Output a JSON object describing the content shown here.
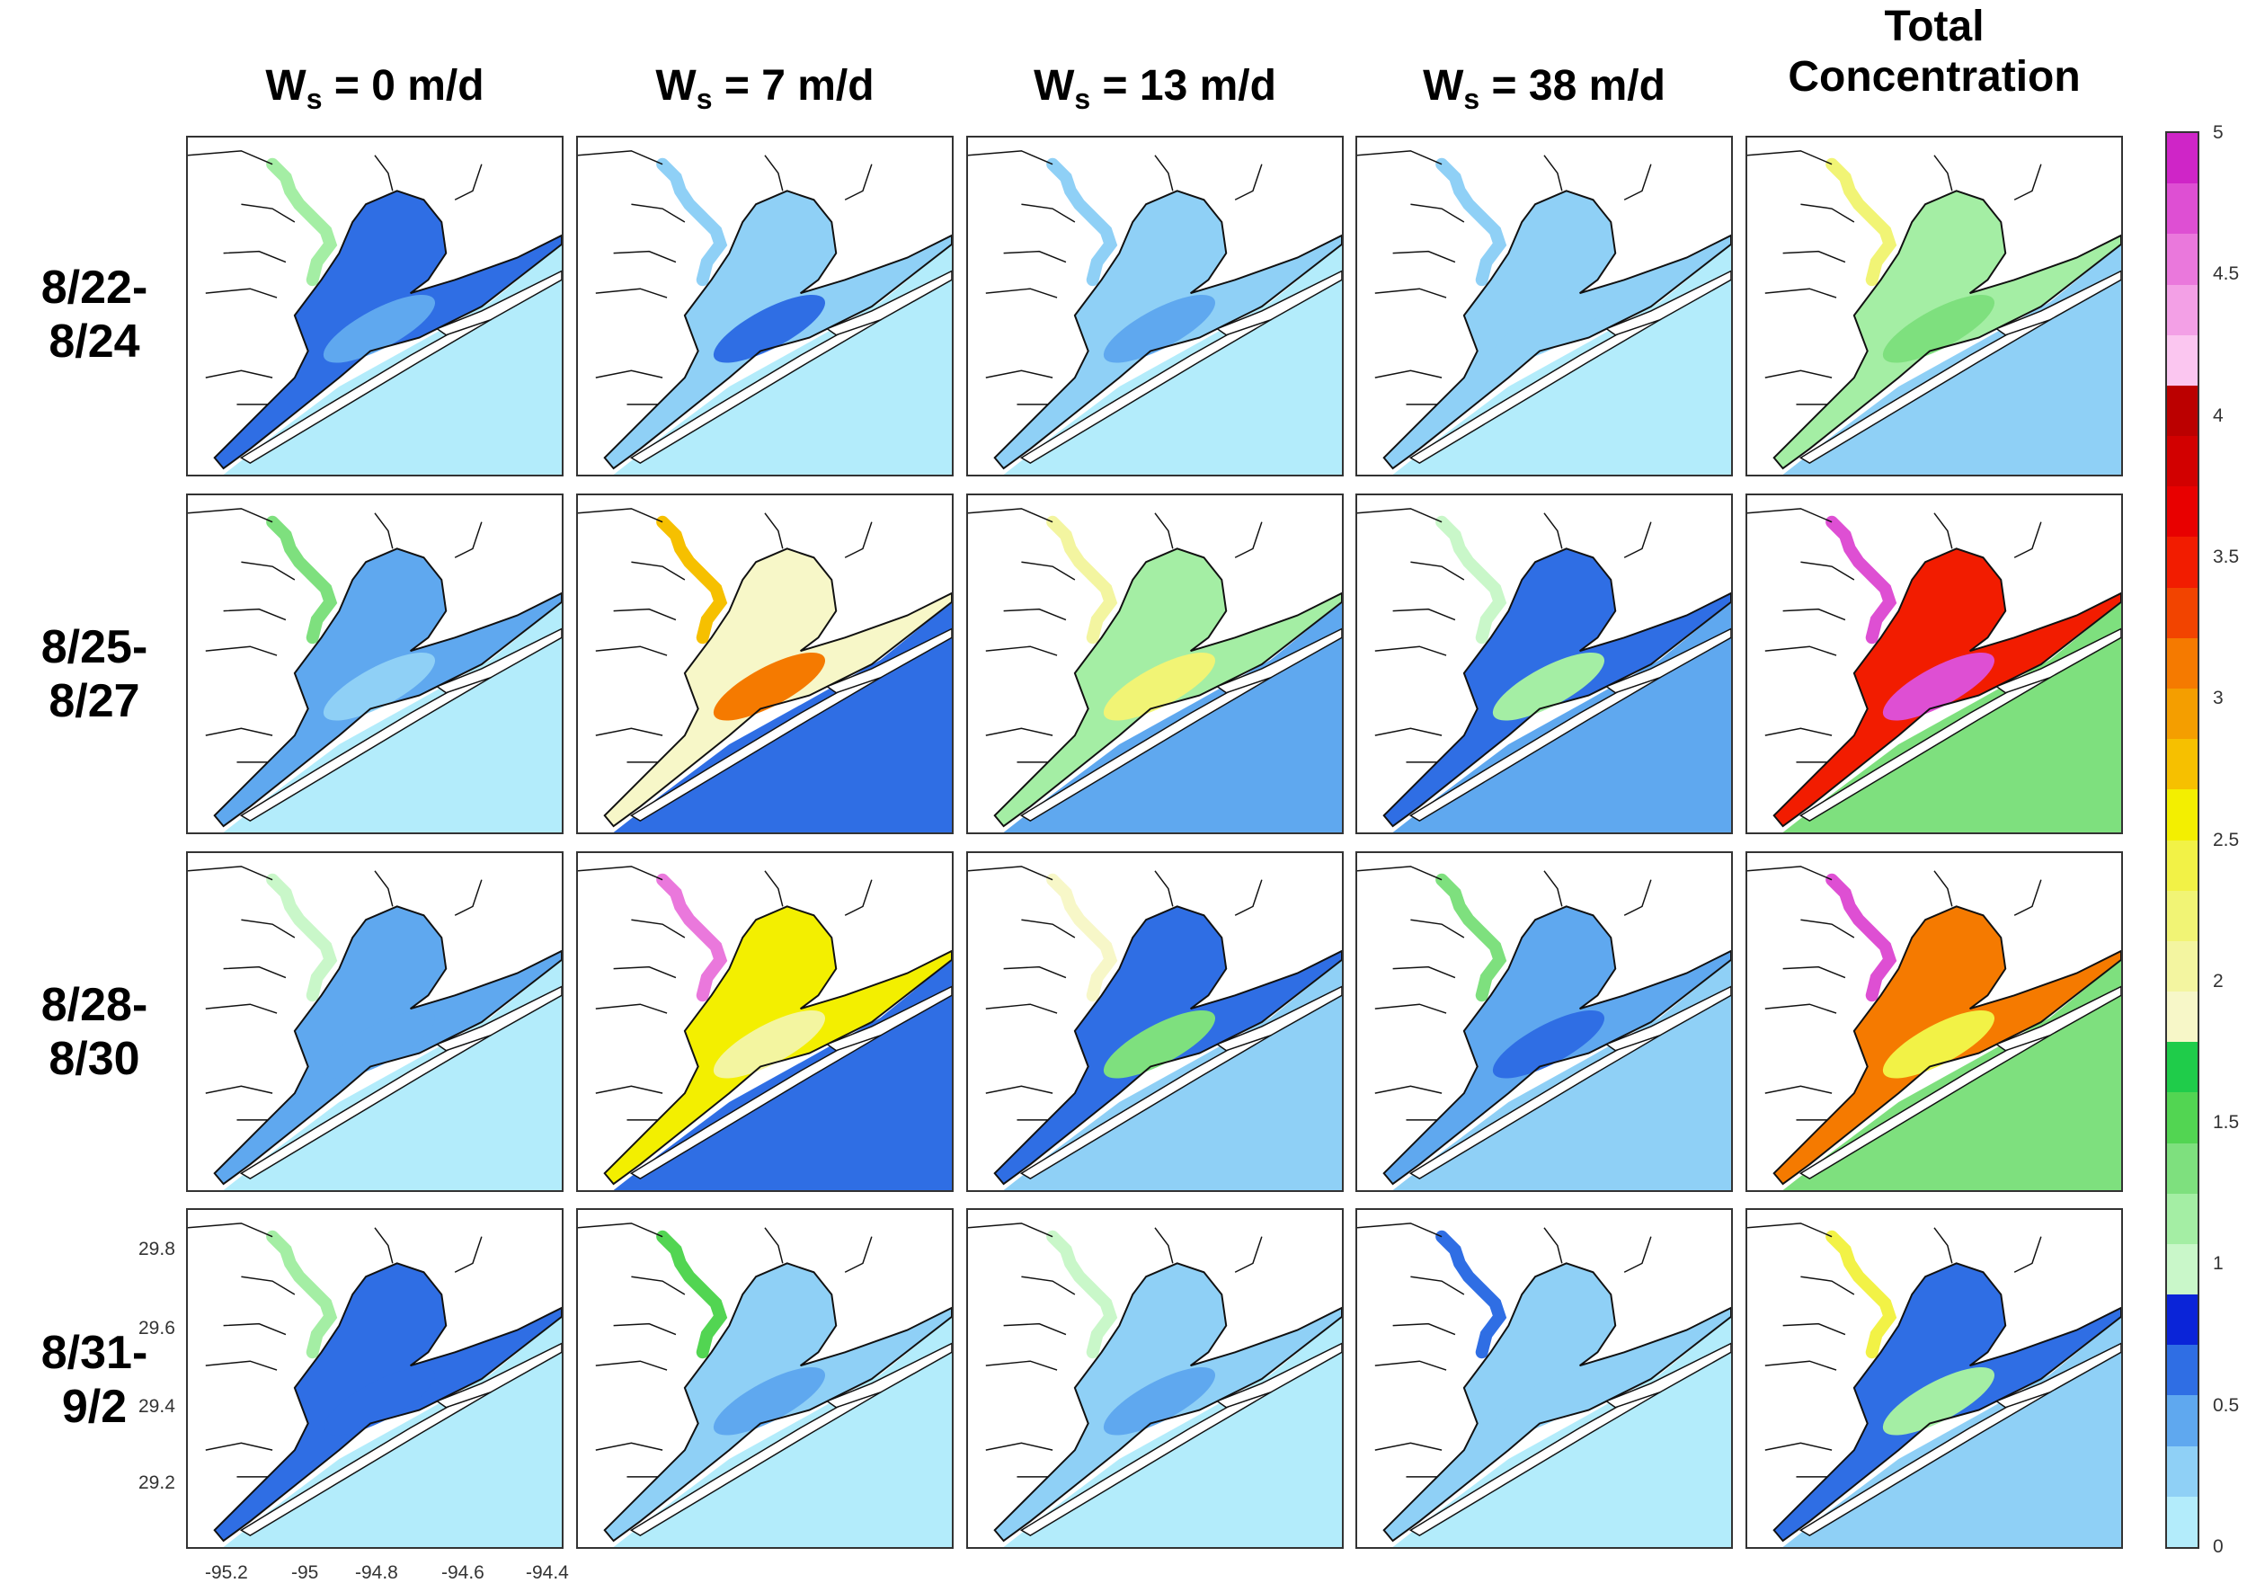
{
  "chart_data": {
    "type": "heatmap",
    "columns": [
      {
        "prefix": "W",
        "sub": "s",
        "rest": " = 0 m/d"
      },
      {
        "prefix": "W",
        "sub": "s",
        "rest": " = 7 m/d"
      },
      {
        "prefix": "W",
        "sub": "s",
        "rest": " = 13 m/d"
      },
      {
        "prefix": "W",
        "sub": "s",
        "rest": " = 38 m/d"
      },
      {
        "line1": "Total",
        "line2": "Concentration"
      }
    ],
    "rows": [
      {
        "line1": "8/22-",
        "line2": "8/24"
      },
      {
        "line1": "8/25-",
        "line2": "8/27"
      },
      {
        "line1": "8/28-",
        "line2": "8/30"
      },
      {
        "line1": "8/31-",
        "line2": "9/2"
      }
    ],
    "x_ticks": [
      "-95.2",
      "-95",
      "-94.8",
      "-94.6",
      "-94.4"
    ],
    "y_ticks": [
      "29.8",
      "29.6",
      "29.4",
      "29.2"
    ],
    "colorbar": {
      "min": 0,
      "max": 5,
      "ticks": [
        "5",
        "4.5",
        "4",
        "3.5",
        "3",
        "2.5",
        "2",
        "1.5",
        "1",
        "0.5",
        "0"
      ],
      "colors": [
        "#b3ecfb",
        "#8fd0f6",
        "#5fa8ef",
        "#2f6ee4",
        "#0a24d8",
        "#c9f7c9",
        "#a4eea4",
        "#7ee07e",
        "#52d552",
        "#1fcc4a",
        "#f7f7c8",
        "#f3f5a0",
        "#f1f475",
        "#f2f246",
        "#f3ef00",
        "#f6c000",
        "#f49e00",
        "#f57a00",
        "#f24400",
        "#f21c00",
        "#e80000",
        "#d20000",
        "#bb0000",
        "#fbc6f0",
        "#f3a0e6",
        "#ea78dc",
        "#de4fd3",
        "#cf25c7"
      ]
    },
    "panels": [
      [
        {
          "c": 1.2,
          "bay": 0.6,
          "plume": 0.5,
          "gulf": 0.1
        },
        {
          "c": 0.3,
          "bay": 0.2,
          "plume": 0.6,
          "gulf": 0.05
        },
        {
          "c": 0.2,
          "bay": 0.2,
          "plume": 0.4,
          "gulf": 0.05
        },
        {
          "c": 0.2,
          "bay": 0.2,
          "plume": 0.3,
          "gulf": 0.05
        },
        {
          "c": 2.2,
          "bay": 1.2,
          "plume": 1.4,
          "gulf": 0.3
        }
      ],
      [
        {
          "c": 1.3,
          "bay": 0.5,
          "plume": 0.3,
          "gulf": 0.1
        },
        {
          "c": 2.8,
          "bay": 1.8,
          "plume": 3.2,
          "gulf": 0.6
        },
        {
          "c": 2.0,
          "bay": 1.2,
          "plume": 2.2,
          "gulf": 0.5
        },
        {
          "c": 1.0,
          "bay": 0.7,
          "plume": 1.2,
          "gulf": 0.4
        },
        {
          "c": 4.8,
          "bay": 3.4,
          "plume": 4.8,
          "gulf": 1.4
        }
      ],
      [
        {
          "c": 1.0,
          "bay": 0.5,
          "plume": 0.5,
          "gulf": 0.1
        },
        {
          "c": 4.6,
          "bay": 2.5,
          "plume": 2.0,
          "gulf": 0.6
        },
        {
          "c": 1.8,
          "bay": 0.7,
          "plume": 1.4,
          "gulf": 0.3
        },
        {
          "c": 1.4,
          "bay": 0.5,
          "plume": 0.7,
          "gulf": 0.2
        },
        {
          "c": 4.8,
          "bay": 3.2,
          "plume": 2.4,
          "gulf": 1.4
        }
      ],
      [
        {
          "c": 1.2,
          "bay": 0.6,
          "plume": 0.6,
          "gulf": 0.1
        },
        {
          "c": 1.6,
          "bay": 0.3,
          "plume": 0.5,
          "gulf": 0.1
        },
        {
          "c": 0.9,
          "bay": 0.3,
          "plume": 0.4,
          "gulf": 0.1
        },
        {
          "c": 0.6,
          "bay": 0.2,
          "plume": 0.3,
          "gulf": 0.1
        },
        {
          "c": 2.4,
          "bay": 0.7,
          "plume": 1.2,
          "gulf": 0.3
        }
      ]
    ]
  }
}
